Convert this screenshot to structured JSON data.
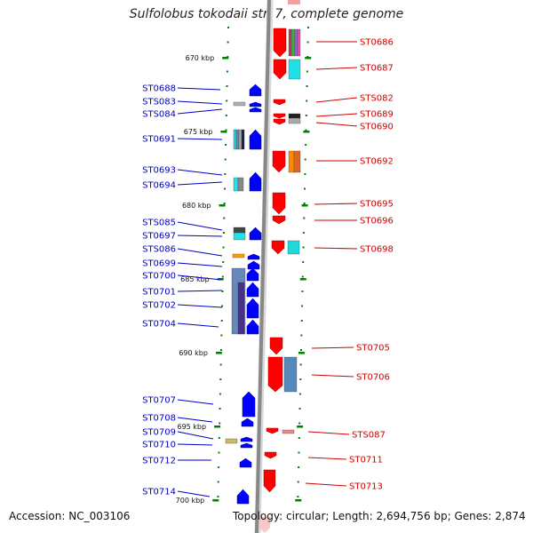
{
  "header": {
    "title": "Sulfolobus tokodaii str. 7, complete genome"
  },
  "footer": {
    "accession": "Accession: NC_003106",
    "summary": "Topology: circular; Length: 2,694,756 bp; Genes: 2,874"
  },
  "scale_labels": [
    "670 kbp",
    "675 kbp",
    "680 kbp",
    "685 kbp",
    "690 kbp",
    "695 kbp",
    "700 kbp"
  ],
  "colors": {
    "forward": "#0000ff",
    "reverse": "#ff0000",
    "backbone": "#888888",
    "tick": "#008000",
    "label_left": "#0000c8",
    "label_right": "#d00000"
  },
  "genes_left": [
    "ST0688",
    "STS083",
    "STS084",
    "ST0691",
    "ST0693",
    "ST0694",
    "STS085",
    "ST0697",
    "STS086",
    "ST0699",
    "ST0700",
    "ST0701",
    "ST0702",
    "ST0704",
    "ST0707",
    "ST0708",
    "ST0709",
    "ST0710",
    "ST0712",
    "ST0714"
  ],
  "genes_right": [
    "ST0686",
    "ST0687",
    "STS082",
    "ST0689",
    "ST0690",
    "ST0692",
    "ST0695",
    "ST0696",
    "ST0698",
    "ST0705",
    "ST0706",
    "STS087",
    "ST0711",
    "ST0713"
  ]
}
